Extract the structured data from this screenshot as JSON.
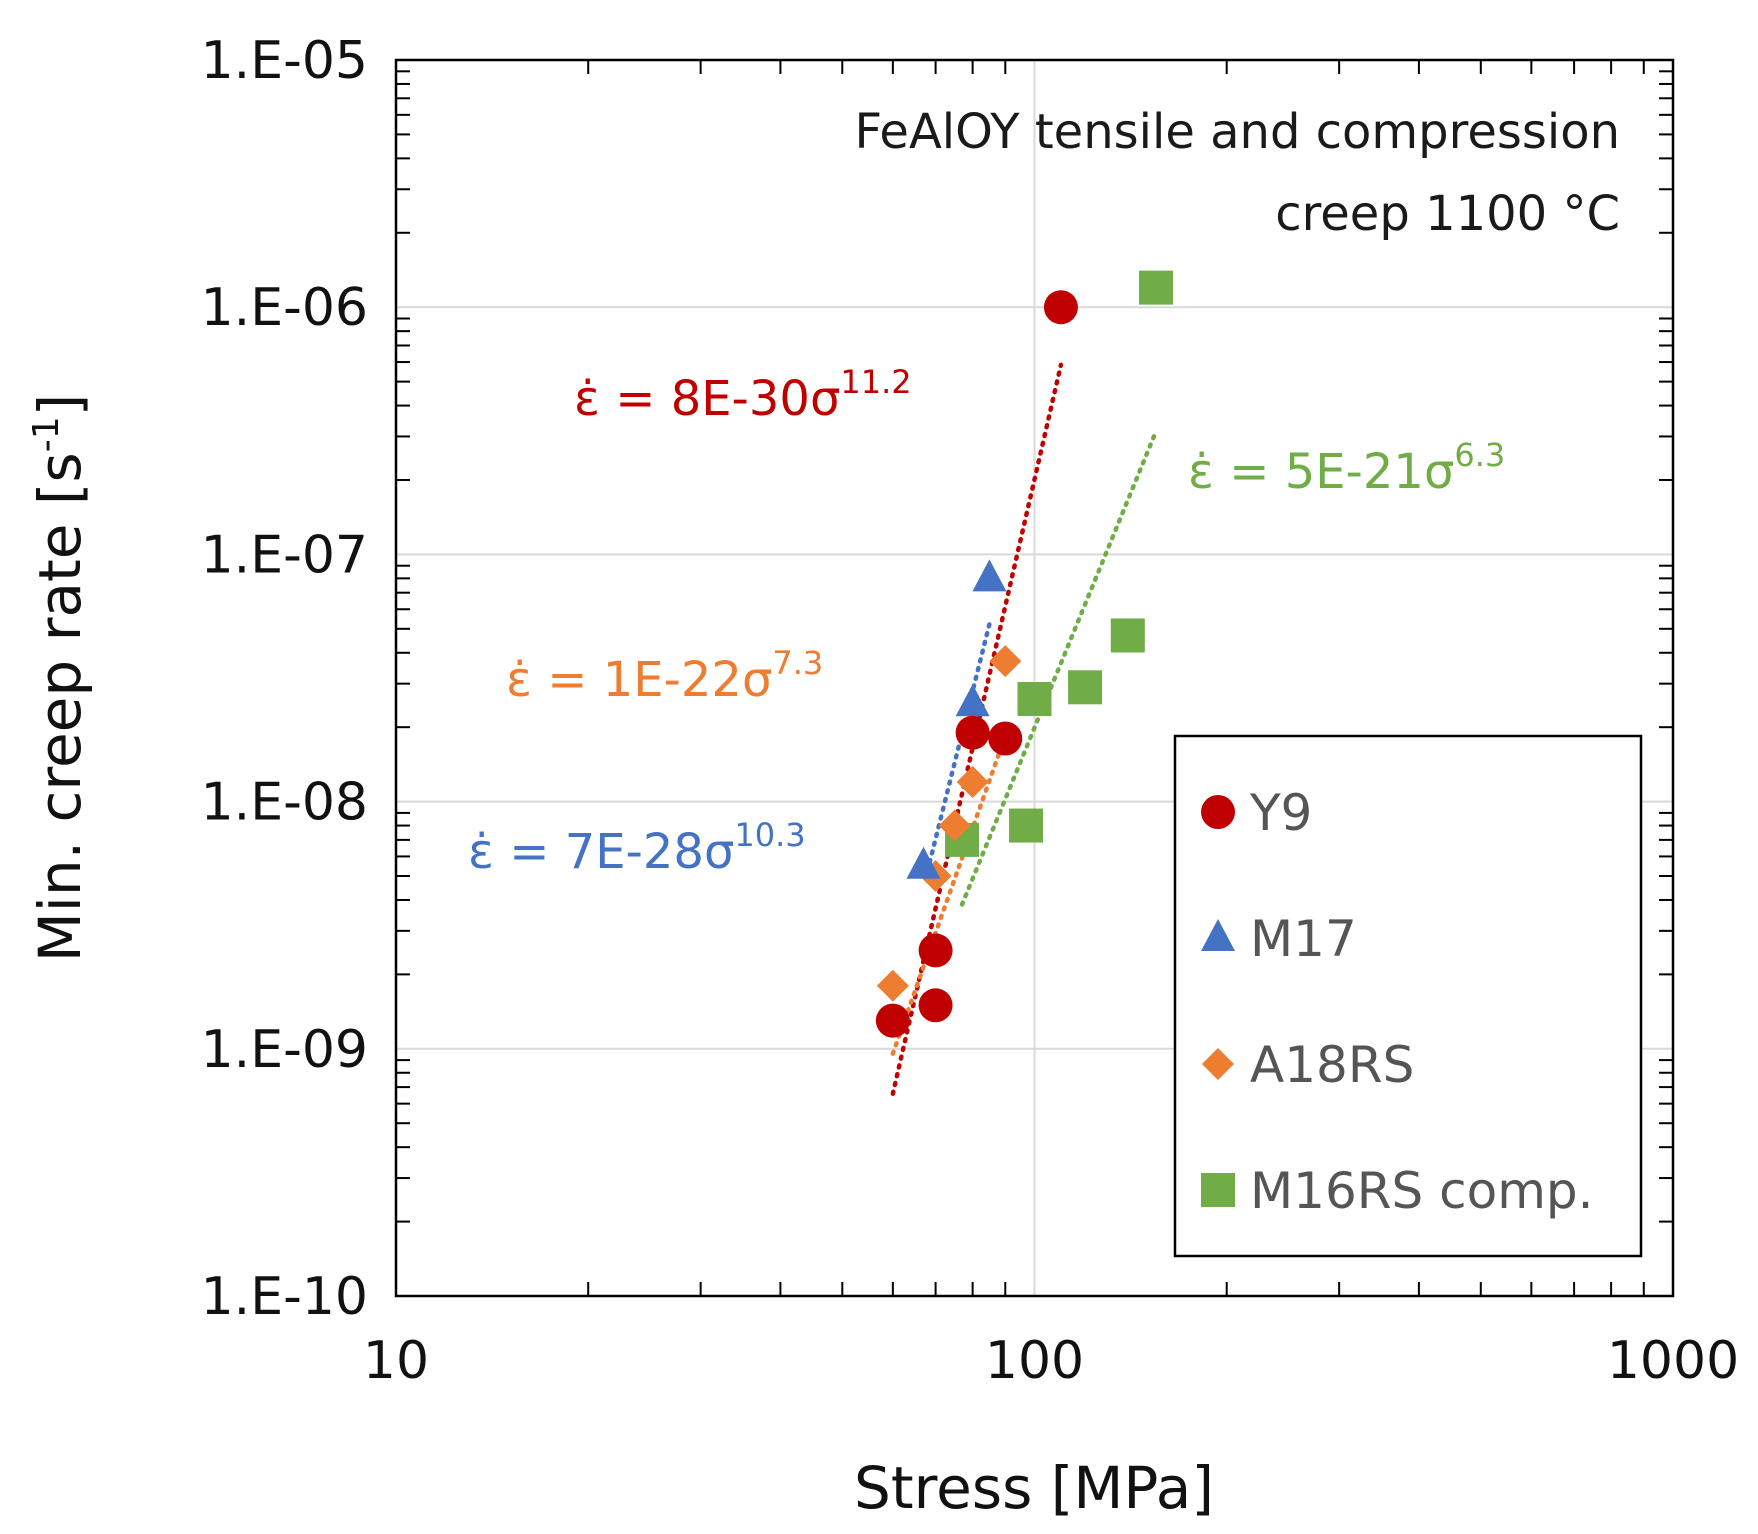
{
  "chart_data": {
    "type": "scatter",
    "x_scale": "log",
    "y_scale": "log",
    "xlabel": "Stress [MPa]",
    "ylabel_main": "Min. creep rate [s",
    "ylabel_sup": "-1",
    "ylabel_end": "]",
    "xlim": [
      10,
      1000
    ],
    "ylim": [
      1e-10,
      1e-05
    ],
    "x_ticks": [
      {
        "value": 10,
        "label": "10"
      },
      {
        "value": 100,
        "label": "100"
      },
      {
        "value": 1000,
        "label": "1000"
      }
    ],
    "y_ticks": [
      {
        "value": 1e-05,
        "label": "1.E-05"
      },
      {
        "value": 1e-06,
        "label": "1.E-06"
      },
      {
        "value": 1e-07,
        "label": "1.E-07"
      },
      {
        "value": 1e-08,
        "label": "1.E-08"
      },
      {
        "value": 1e-09,
        "label": "1.E-09"
      },
      {
        "value": 1e-10,
        "label": "1.E-10"
      }
    ],
    "annotation_lines": [
      "FeAlOY tensile and compression",
      "creep 1100 °C"
    ],
    "legend_position": "bottom-right",
    "series": [
      {
        "name": "Y9",
        "marker": "circle",
        "color": "#C00000",
        "points": [
          [
            60,
            1.3e-09
          ],
          [
            70,
            1.5e-09
          ],
          [
            70,
            2.5e-09
          ],
          [
            80,
            1.9e-08
          ],
          [
            90,
            1.8e-08
          ],
          [
            110,
            1e-06
          ]
        ],
        "fit": {
          "coef": 8e-30,
          "exponent": 11.2,
          "x_range": [
            60,
            110
          ],
          "label": "8E-30",
          "exp_label": "11.2"
        }
      },
      {
        "name": "M17",
        "marker": "triangle",
        "color": "#4472C4",
        "points": [
          [
            67,
            5.5e-09
          ],
          [
            80,
            2.5e-08
          ],
          [
            85,
            8e-08
          ]
        ],
        "fit": {
          "coef": 7e-28,
          "exponent": 10.3,
          "x_range": [
            68,
            85
          ],
          "label": "7E-28",
          "exp_label": "10.3"
        }
      },
      {
        "name": "A18RS",
        "marker": "diamond",
        "color": "#ED7D31",
        "points": [
          [
            60,
            1.8e-09
          ],
          [
            70,
            5e-09
          ],
          [
            75,
            8e-09
          ],
          [
            80,
            1.2e-08
          ],
          [
            90,
            3.7e-08
          ]
        ],
        "fit": {
          "coef": 1e-22,
          "exponent": 7.3,
          "x_range": [
            60,
            90
          ],
          "label": "1E-22",
          "exp_label": "7.3"
        }
      },
      {
        "name": "M16RS comp.",
        "marker": "square",
        "color": "#70AD47",
        "points": [
          [
            77,
            7e-09
          ],
          [
            97,
            8e-09
          ],
          [
            100,
            2.6e-08
          ],
          [
            120,
            2.9e-08
          ],
          [
            140,
            4.7e-08
          ],
          [
            155,
            1.2e-06
          ]
        ],
        "fit": {
          "coef": 5e-21,
          "exponent": 6.3,
          "x_range": [
            77,
            155
          ],
          "label": "5E-21",
          "exp_label": "6.3"
        }
      }
    ],
    "equation_symbols": {
      "rate": "ε̇",
      "equals": " = ",
      "stress": "σ"
    }
  }
}
